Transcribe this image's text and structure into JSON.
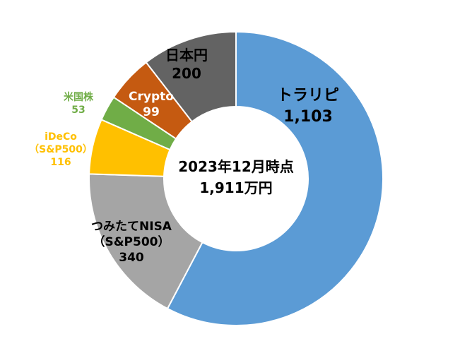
{
  "chart_data": {
    "type": "pie",
    "donut": true,
    "center_text": [
      "2023年12月時点",
      "1,911万円"
    ],
    "slices": [
      {
        "name": "トラリピ",
        "value": 1103,
        "value_label": "1,103",
        "color": "#5B9BD5"
      },
      {
        "name": "つみたてNISA",
        "name2": "（S&P500）",
        "value": 340,
        "value_label": "340",
        "color": "#A5A5A5"
      },
      {
        "name": "iDeCo",
        "name2": "（S&P500）",
        "value": 116,
        "value_label": "116",
        "color": "#FFC000"
      },
      {
        "name": "米国株",
        "value": 53,
        "value_label": "53",
        "color": "#70AD47"
      },
      {
        "name": "Crypto",
        "value": 99,
        "value_label": "99",
        "color": "#C55A11"
      },
      {
        "name": "日本円",
        "value": 200,
        "value_label": "200",
        "color": "#636363"
      }
    ]
  }
}
